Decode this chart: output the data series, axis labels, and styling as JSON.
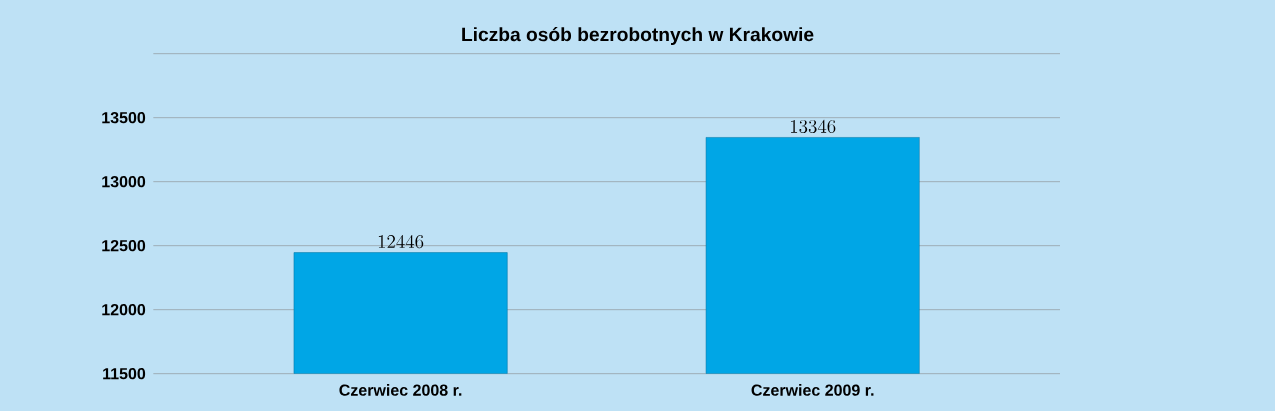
{
  "chart_data": {
    "type": "bar",
    "title": "Liczba osób bezrobotnych w Krakowie",
    "categories": [
      "Czerwiec 2008 r.",
      "Czerwiec 2009 r."
    ],
    "values": [
      12446,
      13346
    ],
    "color": "#00a6e6",
    "ylim": [
      11500,
      14000
    ],
    "yticks": [
      11500,
      12000,
      12500,
      13000,
      13500,
      {
        "value": 14000,
        "label": null
      }
    ],
    "grid": "y",
    "data_labels": true
  }
}
